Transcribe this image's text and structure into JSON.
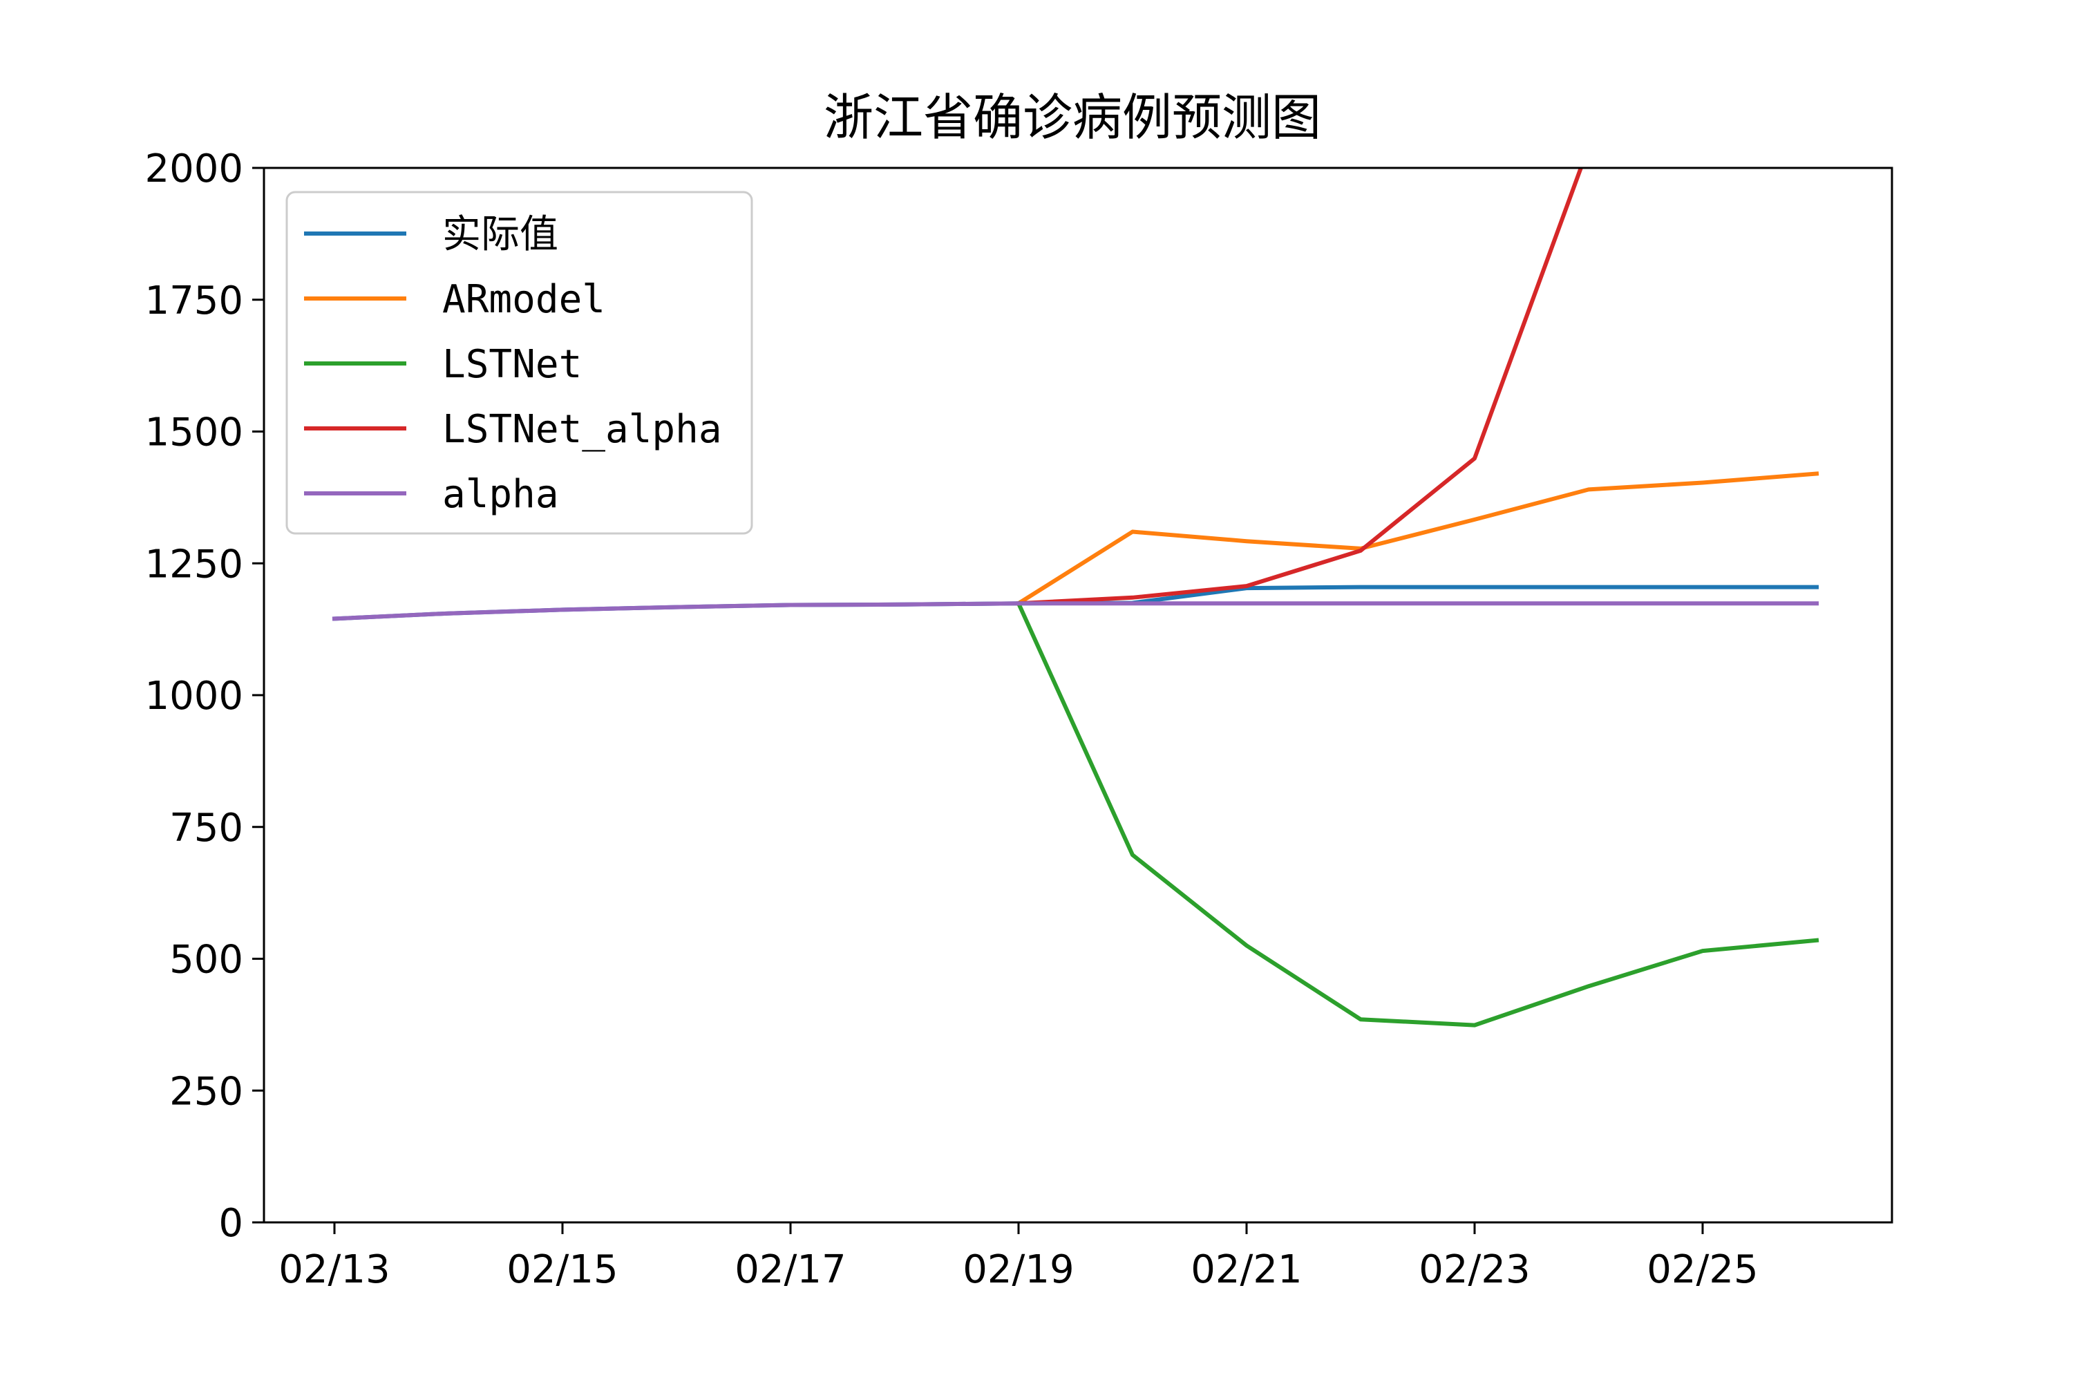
{
  "chart_data": {
    "type": "line",
    "title": "浙江省确诊病例预测图",
    "xlabel": "",
    "ylabel": "",
    "x": [
      "02/13",
      "02/14",
      "02/15",
      "02/16",
      "02/17",
      "02/18",
      "02/19",
      "02/20",
      "02/21",
      "02/22",
      "02/23",
      "02/24",
      "02/25",
      "02/26"
    ],
    "x_ticks": [
      "02/13",
      "02/15",
      "02/17",
      "02/19",
      "02/21",
      "02/23",
      "02/25"
    ],
    "ylim": [
      0,
      2000
    ],
    "y_ticks": [
      0,
      250,
      500,
      750,
      1000,
      1250,
      1500,
      1750,
      2000
    ],
    "grid": false,
    "legend_position": "top-left",
    "series": [
      {
        "name": "实际值",
        "color": "#1f77b4",
        "values": [
          1145,
          1155,
          1162,
          1167,
          1171,
          1172,
          1174,
          1175,
          1203,
          1205,
          1205,
          1205,
          1205,
          1205
        ]
      },
      {
        "name": "ARmodel",
        "color": "#ff7f0e",
        "values": [
          null,
          null,
          null,
          null,
          null,
          null,
          1174,
          1310,
          1292,
          1278,
          1333,
          1390,
          1403,
          1420
        ]
      },
      {
        "name": "LSTNet",
        "color": "#2ca02c",
        "values": [
          null,
          null,
          null,
          null,
          null,
          null,
          1174,
          697,
          525,
          385,
          374,
          448,
          515,
          535
        ]
      },
      {
        "name": "LSTNet_alpha",
        "color": "#d62728",
        "values": [
          null,
          null,
          null,
          null,
          null,
          null,
          1174,
          1185,
          1207,
          1274,
          1449,
          2040,
          null,
          null
        ]
      },
      {
        "name": "alpha",
        "color": "#9467bd",
        "values": [
          1145,
          1155,
          1162,
          1167,
          1171,
          1172,
          1174,
          1174,
          1174,
          1174,
          1174,
          1174,
          1174,
          1174
        ]
      }
    ]
  }
}
